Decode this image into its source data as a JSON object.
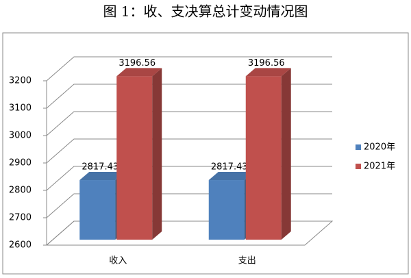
{
  "chart_data": {
    "type": "bar3d",
    "title": "图 1：收、支决算总计变动情况图",
    "categories": [
      "收入",
      "支出"
    ],
    "series": [
      {
        "name": "2020年",
        "color": "#4f81bd",
        "values": [
          2817.43,
          2817.43
        ]
      },
      {
        "name": "2021年",
        "color": "#c0504d",
        "values": [
          3196.56,
          3196.56
        ]
      }
    ],
    "ylim": [
      2600,
      3200
    ],
    "yticks": [
      2600,
      2700,
      2800,
      2900,
      3000,
      3100,
      3200
    ],
    "grid": true,
    "legend": "right"
  }
}
